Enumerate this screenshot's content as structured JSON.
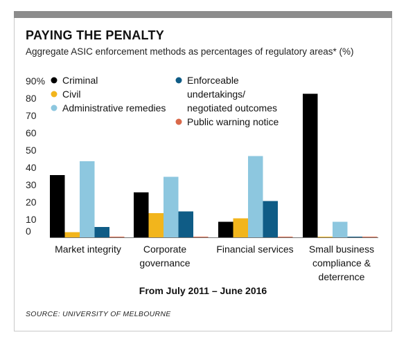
{
  "title": "PAYING THE PENALTY",
  "subtitle": "Aggregate ASIC enforcement methods as percentages of regulatory areas* (%)",
  "source": "SOURCE: UNIVERSITY OF MELBOURNE",
  "chart_data": {
    "type": "bar",
    "xlabel": "From July 2011 – June 2016",
    "ylabel": "",
    "ylim": [
      0,
      90
    ],
    "yticks": [
      "90%",
      "80",
      "70",
      "60",
      "50",
      "40",
      "30",
      "20",
      "10",
      "0"
    ],
    "categories": [
      "Market integrity",
      "Corporate governance",
      "Financial services",
      "Small business compliance & deterrence"
    ],
    "category_lines": [
      [
        "Market integrity"
      ],
      [
        "Corporate",
        "governance"
      ],
      [
        "Financial services"
      ],
      [
        "Small business",
        "compliance &",
        "deterrence"
      ]
    ],
    "series": [
      {
        "name": "Criminal",
        "color": "#000000",
        "values": [
          36,
          26,
          9,
          83
        ]
      },
      {
        "name": "Civil",
        "color": "#f2b51c",
        "values": [
          3,
          14,
          11,
          0.3
        ]
      },
      {
        "name": "Administrative remedies",
        "color": "#8dc7df",
        "values": [
          44,
          35,
          47,
          9
        ]
      },
      {
        "name": "Enforceable undertakings/ negotiated outcomes",
        "color": "#0f5c86",
        "values": [
          6,
          15,
          21,
          0.3
        ]
      },
      {
        "name": "Public warning notice",
        "color": "#d9694a",
        "values": [
          0.3,
          0.3,
          0.3,
          0.3
        ]
      }
    ],
    "legend": {
      "placement": "top-left",
      "entries": [
        {
          "label_lines": [
            "Criminal"
          ]
        },
        {
          "label_lines": [
            "Civil"
          ]
        },
        {
          "label_lines": [
            "Administrative remedies"
          ]
        },
        {
          "label_lines": [
            "Enforceable",
            "undertakings/",
            "negotiated outcomes"
          ]
        },
        {
          "label_lines": [
            "Public warning notice"
          ]
        }
      ]
    },
    "grid": false
  }
}
